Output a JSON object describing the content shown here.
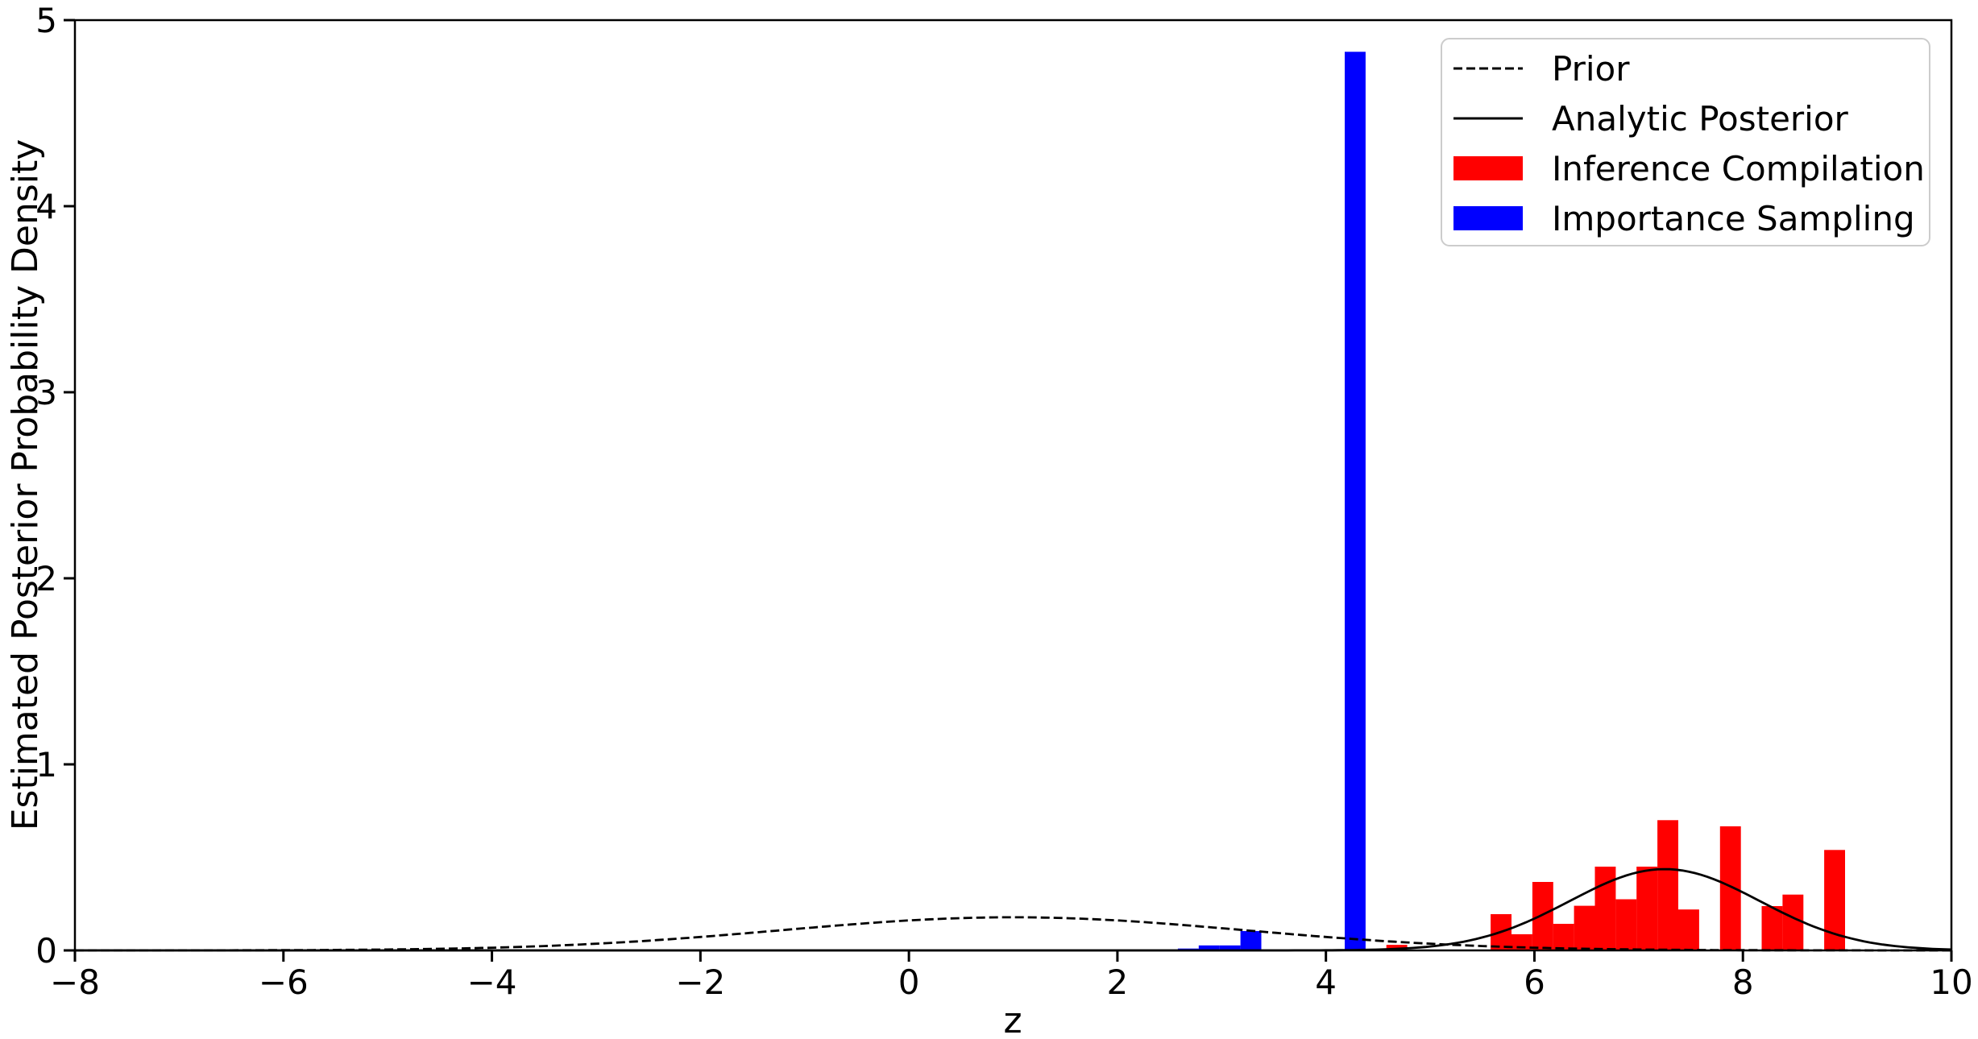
{
  "chart_data": {
    "type": "bar",
    "subtype": "histogram-with-line-overlays",
    "title": "",
    "xlabel": "z",
    "ylabel": "Estimated Posterior Probability Density",
    "xlim": [
      -8,
      10
    ],
    "ylim": [
      0,
      5
    ],
    "x_ticks": [
      -8,
      -6,
      -4,
      -2,
      0,
      2,
      4,
      6,
      8,
      10
    ],
    "y_ticks": [
      0,
      1,
      2,
      3,
      4,
      5
    ],
    "grid": false,
    "legend_position": "upper right",
    "colors": {
      "prior_line": "#000000",
      "posterior_line": "#000000",
      "inference_compilation": "#ff0000",
      "importance_sampling": "#0000ff",
      "legend_border": "#cccccc",
      "background": "#ffffff"
    },
    "series": [
      {
        "name": "Prior",
        "type": "line",
        "style": "dashed",
        "color": "#000000",
        "shape": "gaussian",
        "mean": 1.0,
        "std": 2.236,
        "peak_density": 0.178
      },
      {
        "name": "Analytic Posterior",
        "type": "line",
        "style": "solid",
        "color": "#000000",
        "shape": "gaussian",
        "mean": 7.25,
        "std": 0.913,
        "peak_density": 0.437
      },
      {
        "name": "Inference Compilation",
        "type": "histogram",
        "color": "#ff0000",
        "bins": [
          [
            4.58,
            4.78,
            0.03
          ],
          [
            5.58,
            5.78,
            0.195
          ],
          [
            5.78,
            5.98,
            0.087
          ],
          [
            5.98,
            6.18,
            0.368
          ],
          [
            6.18,
            6.38,
            0.143
          ],
          [
            6.38,
            6.58,
            0.24
          ],
          [
            6.58,
            6.78,
            0.45
          ],
          [
            6.78,
            6.98,
            0.275
          ],
          [
            6.98,
            7.18,
            0.45
          ],
          [
            7.18,
            7.38,
            0.7
          ],
          [
            7.38,
            7.58,
            0.22
          ],
          [
            7.78,
            7.98,
            0.667
          ],
          [
            8.18,
            8.38,
            0.238
          ],
          [
            8.38,
            8.58,
            0.3
          ],
          [
            8.78,
            8.98,
            0.54
          ]
        ]
      },
      {
        "name": "Importance Sampling",
        "type": "histogram",
        "color": "#0000ff",
        "bins": [
          [
            2.58,
            2.78,
            0.01
          ],
          [
            2.78,
            2.98,
            0.027
          ],
          [
            2.98,
            3.18,
            0.027
          ],
          [
            3.18,
            3.38,
            0.104
          ],
          [
            4.18,
            4.38,
            4.83
          ]
        ]
      }
    ]
  }
}
